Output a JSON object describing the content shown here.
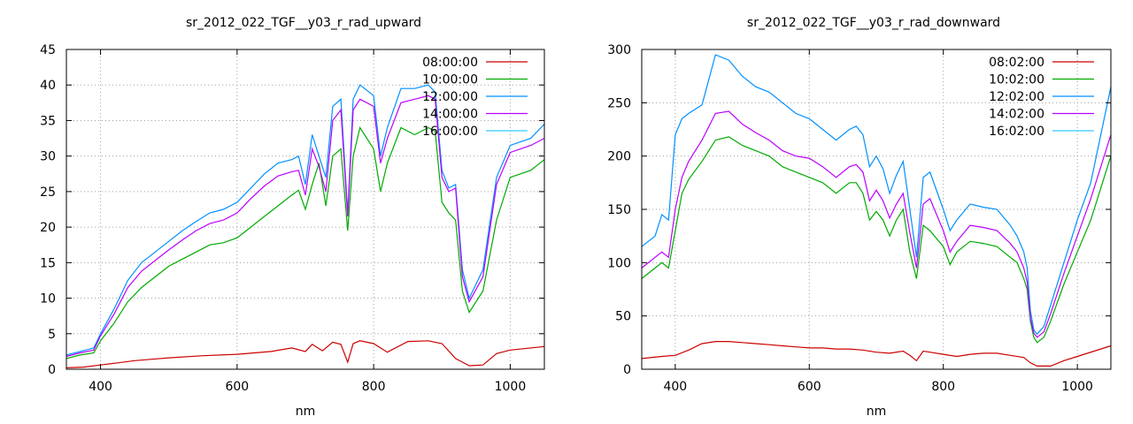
{
  "chart_data": [
    {
      "type": "line",
      "title": "sr_2012_022_TGF__y03_r_rad_upward",
      "xlabel": "nm",
      "ylabel": "",
      "xlim": [
        350,
        1050
      ],
      "ylim": [
        0,
        45
      ],
      "x_ticks": [
        400,
        600,
        800,
        1000
      ],
      "y_ticks": [
        0,
        5,
        10,
        15,
        20,
        25,
        30,
        35,
        40,
        45
      ],
      "grid": true,
      "legend": "top-right",
      "series": [
        {
          "name": "08:00:00",
          "color": "#cc0000",
          "x": [
            350,
            375,
            400,
            425,
            450,
            475,
            500,
            550,
            600,
            650,
            680,
            700,
            710,
            725,
            740,
            752,
            762,
            770,
            780,
            800,
            820,
            850,
            880,
            900,
            920,
            930,
            940,
            960,
            980,
            1000,
            1050
          ],
          "y": [
            0.2,
            0.3,
            0.6,
            0.9,
            1.2,
            1.4,
            1.6,
            1.9,
            2.1,
            2.5,
            3.0,
            2.5,
            3.5,
            2.6,
            3.8,
            3.5,
            1.0,
            3.6,
            4.0,
            3.6,
            2.4,
            3.9,
            4.0,
            3.6,
            1.5,
            1.0,
            0.5,
            0.6,
            2.2,
            2.7,
            3.2
          ]
        },
        {
          "name": "10:00:00",
          "color": "#00aa00",
          "x": [
            350,
            370,
            390,
            400,
            420,
            440,
            460,
            480,
            500,
            520,
            540,
            560,
            580,
            600,
            620,
            640,
            660,
            680,
            690,
            700,
            710,
            720,
            730,
            740,
            752,
            762,
            770,
            780,
            800,
            810,
            820,
            840,
            860,
            880,
            890,
            900,
            910,
            920,
            930,
            940,
            960,
            980,
            1000,
            1030,
            1050
          ],
          "y": [
            1.5,
            2.0,
            2.3,
            4.0,
            6.5,
            9.5,
            11.5,
            13.0,
            14.5,
            15.5,
            16.5,
            17.5,
            17.8,
            18.5,
            20.0,
            21.5,
            23.0,
            24.5,
            25.2,
            22.5,
            26.0,
            29.0,
            23.0,
            30.0,
            31.0,
            19.5,
            30.0,
            34.0,
            31.0,
            25.0,
            29.0,
            34.0,
            33.0,
            34.0,
            33.5,
            23.5,
            22.0,
            21.0,
            11.0,
            8.0,
            11.0,
            21.0,
            27.0,
            28.0,
            29.5
          ]
        },
        {
          "name": "12:00:00",
          "color": "#0090ff",
          "x": [
            350,
            370,
            390,
            400,
            420,
            440,
            460,
            480,
            500,
            520,
            540,
            560,
            580,
            600,
            620,
            640,
            660,
            680,
            690,
            700,
            710,
            720,
            730,
            740,
            752,
            762,
            770,
            780,
            800,
            810,
            820,
            840,
            860,
            880,
            890,
            900,
            910,
            920,
            930,
            940,
            960,
            980,
            1000,
            1030,
            1050
          ],
          "y": [
            2.0,
            2.5,
            3.0,
            5.0,
            8.5,
            12.5,
            15.0,
            16.5,
            18.0,
            19.5,
            20.8,
            22.0,
            22.5,
            23.5,
            25.5,
            27.5,
            29.0,
            29.5,
            30.0,
            26.0,
            33.0,
            30.0,
            27.0,
            37.0,
            38.0,
            22.0,
            38.0,
            40.0,
            38.5,
            30.0,
            34.0,
            39.5,
            39.5,
            40.0,
            39.0,
            28.0,
            25.5,
            26.0,
            14.0,
            10.0,
            14.0,
            27.0,
            31.5,
            32.5,
            34.5
          ]
        },
        {
          "name": "14:00:00",
          "color": "#bb00ff",
          "x": [
            350,
            370,
            390,
            400,
            420,
            440,
            460,
            480,
            500,
            520,
            540,
            560,
            580,
            600,
            620,
            640,
            660,
            680,
            690,
            700,
            710,
            720,
            730,
            740,
            752,
            762,
            770,
            780,
            800,
            810,
            820,
            840,
            860,
            880,
            890,
            900,
            910,
            920,
            930,
            940,
            960,
            980,
            1000,
            1030,
            1050
          ],
          "y": [
            1.8,
            2.3,
            2.7,
            4.7,
            7.8,
            11.5,
            13.8,
            15.3,
            16.8,
            18.2,
            19.5,
            20.5,
            21.0,
            22.0,
            24.0,
            25.8,
            27.2,
            27.8,
            28.0,
            24.5,
            31.0,
            28.5,
            25.0,
            35.0,
            36.5,
            21.5,
            36.5,
            38.0,
            37.0,
            29.0,
            32.5,
            37.5,
            38.0,
            38.5,
            38.0,
            27.0,
            25.0,
            25.5,
            13.0,
            9.5,
            13.0,
            26.0,
            30.5,
            31.5,
            32.5
          ]
        },
        {
          "name": "16:00:00",
          "color": "#33ccff",
          "x": [
            350,
            1050
          ],
          "y": [
            null,
            null
          ]
        }
      ]
    },
    {
      "type": "line",
      "title": "sr_2012_022_TGF__y03_r_rad_downward",
      "xlabel": "nm",
      "ylabel": "",
      "xlim": [
        350,
        1050
      ],
      "ylim": [
        0,
        300
      ],
      "x_ticks": [
        400,
        600,
        800,
        1000
      ],
      "y_ticks": [
        0,
        50,
        100,
        150,
        200,
        250,
        300
      ],
      "grid": true,
      "legend": "top-right",
      "series": [
        {
          "name": "08:02:00",
          "color": "#cc0000",
          "x": [
            350,
            380,
            400,
            420,
            440,
            460,
            480,
            500,
            520,
            540,
            560,
            580,
            600,
            620,
            640,
            660,
            680,
            700,
            720,
            740,
            750,
            760,
            770,
            780,
            800,
            820,
            840,
            860,
            880,
            900,
            920,
            930,
            940,
            960,
            980,
            1000,
            1050
          ],
          "y": [
            10,
            12,
            13,
            18,
            24,
            26,
            26,
            25,
            24,
            23,
            22,
            21,
            20,
            20,
            19,
            19,
            18,
            16,
            15,
            17,
            13,
            8,
            17,
            16,
            14,
            12,
            14,
            15,
            15,
            13,
            11,
            6,
            3,
            3,
            8,
            12,
            22
          ]
        },
        {
          "name": "10:02:00",
          "color": "#00aa00",
          "x": [
            350,
            370,
            380,
            390,
            400,
            410,
            420,
            440,
            460,
            480,
            500,
            520,
            540,
            560,
            580,
            600,
            620,
            640,
            660,
            670,
            680,
            690,
            700,
            710,
            720,
            730,
            740,
            750,
            760,
            770,
            780,
            800,
            810,
            820,
            840,
            860,
            880,
            900,
            910,
            920,
            925,
            930,
            935,
            940,
            950,
            960,
            980,
            1000,
            1020,
            1050
          ],
          "y": [
            85,
            95,
            100,
            95,
            130,
            165,
            178,
            195,
            215,
            218,
            210,
            205,
            200,
            190,
            185,
            180,
            175,
            165,
            175,
            175,
            165,
            140,
            148,
            140,
            125,
            140,
            150,
            110,
            85,
            135,
            130,
            115,
            98,
            110,
            120,
            118,
            115,
            105,
            100,
            85,
            75,
            45,
            30,
            25,
            30,
            45,
            80,
            110,
            140,
            200
          ]
        },
        {
          "name": "12:02:00",
          "color": "#0090ff",
          "x": [
            350,
            370,
            380,
            390,
            400,
            410,
            420,
            440,
            460,
            480,
            500,
            520,
            540,
            560,
            580,
            600,
            620,
            640,
            660,
            670,
            680,
            690,
            700,
            710,
            720,
            730,
            740,
            750,
            760,
            770,
            780,
            800,
            810,
            820,
            840,
            860,
            880,
            900,
            910,
            920,
            925,
            930,
            935,
            940,
            950,
            960,
            980,
            1000,
            1020,
            1050
          ],
          "y": [
            115,
            125,
            145,
            140,
            220,
            235,
            240,
            248,
            295,
            290,
            275,
            265,
            260,
            250,
            240,
            235,
            225,
            215,
            225,
            228,
            220,
            190,
            200,
            188,
            165,
            182,
            195,
            150,
            105,
            180,
            185,
            150,
            130,
            140,
            155,
            152,
            150,
            135,
            125,
            110,
            95,
            55,
            37,
            33,
            40,
            60,
            100,
            140,
            175,
            265
          ]
        },
        {
          "name": "14:02:00",
          "color": "#bb00ff",
          "x": [
            350,
            370,
            380,
            390,
            400,
            410,
            420,
            440,
            460,
            480,
            500,
            520,
            540,
            560,
            580,
            600,
            620,
            640,
            660,
            670,
            680,
            690,
            700,
            710,
            720,
            730,
            740,
            750,
            760,
            770,
            780,
            800,
            810,
            820,
            840,
            860,
            880,
            900,
            910,
            920,
            925,
            930,
            935,
            940,
            950,
            960,
            980,
            1000,
            1020,
            1050
          ],
          "y": [
            95,
            105,
            110,
            105,
            150,
            180,
            195,
            215,
            240,
            242,
            230,
            222,
            215,
            205,
            200,
            198,
            190,
            180,
            190,
            192,
            185,
            158,
            168,
            158,
            142,
            155,
            165,
            128,
            95,
            155,
            160,
            130,
            110,
            120,
            135,
            133,
            130,
            118,
            110,
            95,
            82,
            48,
            34,
            30,
            35,
            52,
            90,
            125,
            160,
            220
          ]
        },
        {
          "name": "16:02:00",
          "color": "#33ccff",
          "x": [
            350,
            1050
          ],
          "y": [
            null,
            null
          ]
        }
      ]
    }
  ]
}
